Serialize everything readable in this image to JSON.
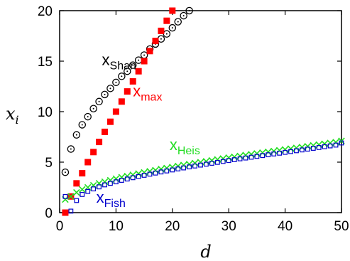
{
  "chart_data": {
    "type": "scatter",
    "xlabel": "d",
    "ylabel": "x",
    "ylabel_sub": "i",
    "xlim": [
      0,
      50
    ],
    "ylim": [
      0,
      20
    ],
    "xticks": [
      0,
      10,
      20,
      30,
      40,
      50
    ],
    "yticks": [
      0,
      5,
      10,
      15,
      20
    ],
    "grid": false,
    "legend": "inline labels",
    "series": [
      {
        "name": "x",
        "name_sub": "Shan",
        "marker": "circle-dot",
        "color": "#000000",
        "x": [
          1,
          2,
          3,
          4,
          5,
          6,
          7,
          8,
          9,
          10,
          11,
          12,
          13,
          14,
          15,
          16,
          17,
          18,
          19,
          20,
          21,
          22,
          23
        ],
        "values": [
          4.0,
          6.3,
          7.7,
          8.7,
          9.5,
          10.3,
          11.0,
          11.7,
          12.3,
          12.9,
          13.5,
          14.0,
          14.6,
          15.1,
          15.6,
          16.2,
          16.7,
          17.2,
          17.7,
          18.3,
          18.9,
          19.5,
          20.0
        ]
      },
      {
        "name": "x",
        "name_sub": "max",
        "marker": "square",
        "color": "#ff0000",
        "x": [
          1,
          2,
          3,
          4,
          5,
          6,
          7,
          8,
          9,
          10,
          11,
          12,
          13,
          14,
          15,
          16,
          17,
          18,
          19,
          20
        ],
        "values": [
          0,
          1.6,
          2.9,
          3.9,
          5.0,
          6.0,
          7.0,
          8.0,
          9.0,
          10.0,
          11.0,
          12.0,
          13.0,
          14.0,
          15.0,
          16.0,
          17.0,
          18.0,
          19.0,
          20.0
        ]
      },
      {
        "name": "x",
        "name_sub": "Heis",
        "marker": "x",
        "color": "#22dd22",
        "x": [
          1,
          2,
          3,
          4,
          5,
          6,
          7,
          8,
          9,
          10,
          11,
          12,
          13,
          14,
          15,
          16,
          17,
          18,
          19,
          20,
          21,
          22,
          23,
          24,
          25,
          26,
          27,
          28,
          29,
          30,
          31,
          32,
          33,
          34,
          35,
          36,
          37,
          38,
          39,
          40,
          41,
          42,
          43,
          44,
          45,
          46,
          47,
          48,
          49,
          50
        ],
        "values": [
          1.3,
          1.6,
          2.0,
          2.3,
          2.5,
          2.7,
          2.9,
          3.05,
          3.2,
          3.35,
          3.5,
          3.62,
          3.74,
          3.86,
          3.98,
          4.09,
          4.2,
          4.31,
          4.41,
          4.51,
          4.61,
          4.71,
          4.8,
          4.9,
          4.99,
          5.08,
          5.17,
          5.26,
          5.35,
          5.44,
          5.52,
          5.61,
          5.69,
          5.77,
          5.85,
          5.93,
          6.01,
          6.09,
          6.17,
          6.25,
          6.33,
          6.41,
          6.49,
          6.57,
          6.65,
          6.73,
          6.81,
          6.89,
          6.97,
          7.1
        ]
      },
      {
        "name": "x",
        "name_sub": "Fish",
        "marker": "square-open",
        "color": "#0000cc",
        "x": [
          1,
          2,
          3,
          4,
          5,
          6,
          7,
          8,
          9,
          10,
          11,
          12,
          13,
          14,
          15,
          16,
          17,
          18,
          19,
          20,
          21,
          22,
          23,
          24,
          25,
          26,
          27,
          28,
          29,
          30,
          31,
          32,
          33,
          34,
          35,
          36,
          37,
          38,
          39,
          40,
          41,
          42,
          43,
          44,
          45,
          46,
          47,
          48,
          49,
          50
        ],
        "values": [
          1.6,
          0.15,
          1.2,
          1.8,
          2.1,
          2.35,
          2.55,
          2.75,
          2.9,
          3.05,
          3.2,
          3.33,
          3.46,
          3.58,
          3.7,
          3.81,
          3.92,
          4.03,
          4.13,
          4.23,
          4.33,
          4.43,
          4.53,
          4.62,
          4.71,
          4.8,
          4.89,
          4.98,
          5.07,
          5.16,
          5.24,
          5.33,
          5.41,
          5.49,
          5.57,
          5.65,
          5.73,
          5.81,
          5.89,
          5.97,
          6.05,
          6.13,
          6.21,
          6.29,
          6.37,
          6.45,
          6.53,
          6.61,
          6.69,
          6.9
        ]
      }
    ],
    "annotations": [
      {
        "series": 0,
        "at_x": 7.5,
        "at_y": 14.6
      },
      {
        "series": 1,
        "at_x": 13.0,
        "at_y": 11.5
      },
      {
        "series": 2,
        "at_x": 19.5,
        "at_y": 6.2
      },
      {
        "series": 3,
        "at_x": 6.5,
        "at_y": 1.0
      }
    ]
  }
}
